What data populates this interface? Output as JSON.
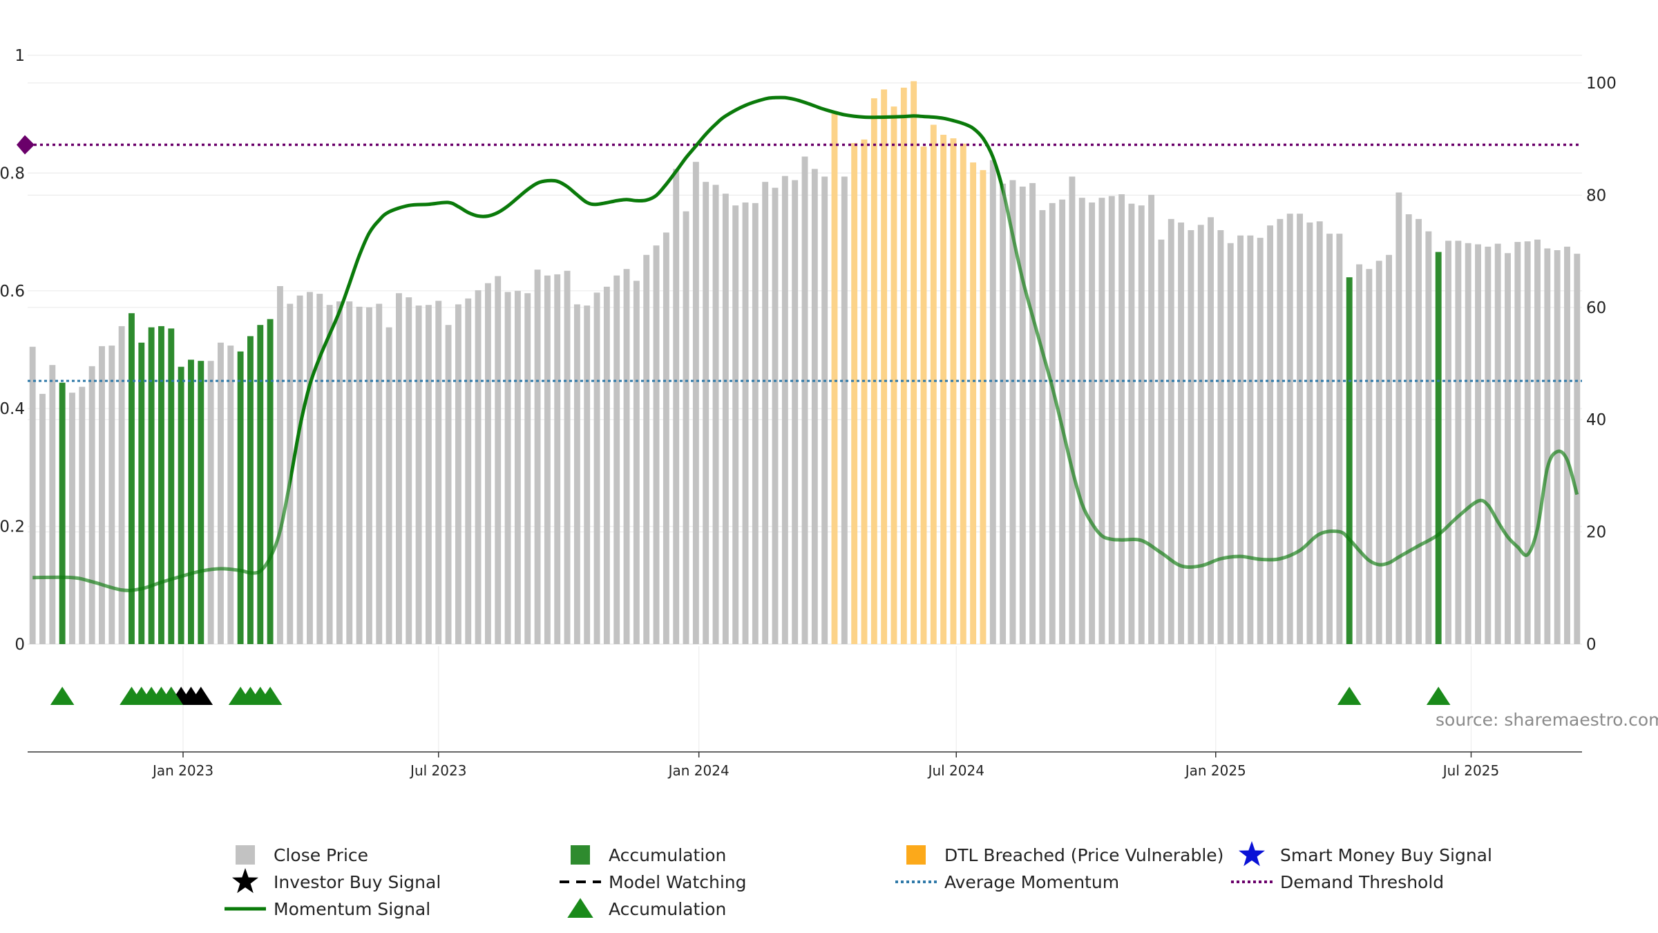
{
  "chart_data": {
    "type": "bar+line",
    "source": "source: sharemaestro.com",
    "left_axis": {
      "ylim": [
        0,
        1
      ],
      "ticks": [
        0,
        0.2,
        0.4,
        0.6,
        0.8,
        1
      ],
      "tick_labels": [
        "0",
        "0.2",
        "0.4",
        "0.6",
        "0.8",
        "1"
      ]
    },
    "right_axis": {
      "ylim": [
        0,
        100
      ],
      "ticks": [
        0,
        20,
        40,
        60,
        80,
        100
      ],
      "tick_labels": [
        "0",
        "20",
        "40",
        "60",
        "80",
        "100"
      ]
    },
    "x_axis": {
      "range_week_index": [
        -0.5,
        156.5
      ],
      "ticks": [
        {
          "label": "Jan 2023",
          "week": 15.2
        },
        {
          "label": "Jul 2023",
          "week": 41.0
        },
        {
          "label": "Jan 2024",
          "week": 67.3
        },
        {
          "label": "Jul 2024",
          "week": 93.3
        },
        {
          "label": "Jan 2025",
          "week": 119.5
        },
        {
          "label": "Jul 2025",
          "week": 145.3
        }
      ]
    },
    "average_momentum": 0.447,
    "demand_threshold": 0.848,
    "series": {
      "close_price": {
        "name": "Close Price",
        "values": [
          0.505,
          0.425,
          0.474,
          0.444,
          0.427,
          0.437,
          0.472,
          0.506,
          0.507,
          0.54,
          0.562,
          0.512,
          0.538,
          0.54,
          0.536,
          0.471,
          0.483,
          0.481,
          0.481,
          0.512,
          0.507,
          0.497,
          0.523,
          0.542,
          0.552,
          0.608,
          0.578,
          0.592,
          0.598,
          0.595,
          0.576,
          0.582,
          0.582,
          0.573,
          0.572,
          0.578,
          0.538,
          0.596,
          0.589,
          0.575,
          0.576,
          0.583,
          0.542,
          0.577,
          0.587,
          0.601,
          0.613,
          0.625,
          0.598,
          0.6,
          0.596,
          0.636,
          0.626,
          0.628,
          0.634,
          0.577,
          0.575,
          0.597,
          0.607,
          0.626,
          0.637,
          0.617,
          0.661,
          0.677,
          0.699,
          0.807,
          0.735,
          0.819,
          0.785,
          0.78,
          0.765,
          0.745,
          0.75,
          0.749,
          0.785,
          0.775,
          0.795,
          0.788,
          0.828,
          0.807,
          0.794,
          0.901,
          0.794,
          0.851,
          0.857,
          0.927,
          0.942,
          0.913,
          0.945,
          0.956,
          0.845,
          0.882,
          0.865,
          0.859,
          0.85,
          0.818,
          0.805,
          0.822,
          0.782,
          0.788,
          0.777,
          0.783,
          0.737,
          0.749,
          0.755,
          0.794,
          0.758,
          0.75,
          0.758,
          0.761,
          0.764,
          0.748,
          0.745,
          0.763,
          0.687,
          0.722,
          0.716,
          0.703,
          0.712,
          0.725,
          0.703,
          0.681,
          0.694,
          0.694,
          0.69,
          0.711,
          0.722,
          0.731,
          0.731,
          0.716,
          0.718,
          0.697,
          0.697,
          0.623,
          0.645,
          0.637,
          0.651,
          0.661,
          0.767,
          0.73,
          0.722,
          0.701,
          0.666,
          0.685,
          0.685,
          0.681,
          0.679,
          0.675,
          0.68,
          0.664,
          0.683,
          0.684,
          0.687,
          0.672,
          0.669,
          0.675,
          0.663
        ],
        "accumulation_weeks": [
          3,
          10,
          11,
          12,
          13,
          14,
          15,
          16,
          17,
          21,
          22,
          23,
          24,
          133,
          142
        ],
        "dtl_breached_weeks": [
          81,
          83,
          84,
          85,
          86,
          87,
          88,
          89,
          90,
          91,
          92,
          93,
          94,
          95,
          96
        ]
      },
      "momentum": {
        "name": "Momentum Signal",
        "weeks": [
          0,
          4,
          6,
          9,
          11,
          13,
          15,
          17,
          19,
          21,
          22,
          23,
          24,
          25,
          26,
          27,
          28,
          29,
          30,
          31,
          32,
          33,
          34,
          35,
          36,
          38,
          40,
          42,
          43,
          44,
          45,
          46,
          47,
          48,
          49,
          50,
          51,
          52,
          53,
          54,
          55,
          56,
          57,
          59,
          60,
          61,
          62,
          63,
          64,
          65,
          66,
          67,
          68,
          69,
          70,
          72,
          74,
          75,
          76,
          77,
          78,
          79,
          80,
          82,
          84,
          86,
          88,
          89,
          90,
          91,
          92,
          93,
          94,
          95,
          96,
          97,
          98,
          99,
          100,
          101,
          102,
          103,
          104,
          105,
          106,
          107,
          108,
          109,
          110,
          112,
          114,
          116,
          118,
          120,
          122,
          124,
          126,
          128,
          130,
          132,
          133,
          134,
          135,
          136,
          137,
          138,
          140,
          142,
          144,
          146,
          147,
          148,
          149,
          150,
          151,
          152,
          153,
          154,
          155,
          156
        ],
        "values": [
          0.113,
          0.113,
          0.106,
          0.092,
          0.094,
          0.105,
          0.115,
          0.124,
          0.128,
          0.125,
          0.121,
          0.124,
          0.147,
          0.192,
          0.276,
          0.369,
          0.44,
          0.487,
          0.526,
          0.565,
          0.612,
          0.66,
          0.698,
          0.72,
          0.734,
          0.745,
          0.747,
          0.75,
          0.743,
          0.733,
          0.727,
          0.727,
          0.733,
          0.744,
          0.758,
          0.772,
          0.783,
          0.787,
          0.786,
          0.777,
          0.763,
          0.75,
          0.747,
          0.753,
          0.755,
          0.753,
          0.754,
          0.762,
          0.781,
          0.803,
          0.826,
          0.846,
          0.866,
          0.883,
          0.897,
          0.915,
          0.926,
          0.928,
          0.928,
          0.925,
          0.92,
          0.914,
          0.908,
          0.899,
          0.895,
          0.895,
          0.896,
          0.897,
          0.896,
          0.895,
          0.893,
          0.889,
          0.884,
          0.876,
          0.859,
          0.827,
          0.772,
          0.694,
          0.619,
          0.557,
          0.497,
          0.436,
          0.368,
          0.297,
          0.238,
          0.205,
          0.184,
          0.178,
          0.177,
          0.176,
          0.155,
          0.133,
          0.133,
          0.145,
          0.149,
          0.144,
          0.145,
          0.159,
          0.187,
          0.191,
          0.178,
          0.159,
          0.142,
          0.135,
          0.138,
          0.148,
          0.167,
          0.186,
          0.217,
          0.243,
          0.236,
          0.208,
          0.182,
          0.165,
          0.152,
          0.196,
          0.299,
          0.327,
          0.313,
          0.254
        ],
        "faded_weeks": [
          [
            0,
            26
          ],
          [
            98,
            156
          ]
        ]
      },
      "accumulation_markers": {
        "name": "Accumulation",
        "weeks": [
          3,
          10,
          11,
          12,
          13,
          14,
          21,
          22,
          23,
          24,
          133,
          142
        ]
      },
      "investor_buy_markers": {
        "name": "Investor Buy Signal",
        "weeks": [
          14,
          15,
          16,
          17
        ]
      }
    },
    "legend": [
      {
        "label": "Close Price",
        "marker": "square",
        "color": "#c2c2c2"
      },
      {
        "label": "Accumulation",
        "marker": "square",
        "color": "#2e8b2e"
      },
      {
        "label": "DTL Breached (Price Vulnerable)",
        "marker": "square",
        "color": "#fca91a"
      },
      {
        "label": "Smart Money Buy Signal",
        "marker": "star",
        "color": "#0a12d6"
      },
      {
        "label": "Investor Buy Signal",
        "marker": "star",
        "color": "#000000"
      },
      {
        "label": "Model Watching",
        "marker": "dash",
        "color": "#000000"
      },
      {
        "label": "Average Momentum",
        "marker": "dotted",
        "color": "#2f79a8"
      },
      {
        "label": "Demand Threshold",
        "marker": "dotted",
        "color": "#6a006a"
      },
      {
        "label": "Momentum Signal",
        "marker": "line",
        "color": "#0a7a0a"
      },
      {
        "label": "Accumulation",
        "marker": "triangle",
        "color": "#1a8a1a"
      }
    ],
    "colors": {
      "close": "#c2c2c2",
      "accumulation": "#2e8b2e",
      "dtl": "#fcd389",
      "momentum": "#0a7a0a",
      "avg_momentum": "#2f79a8",
      "threshold": "#6a006a",
      "marker_green": "#1a8a1a",
      "marker_black": "#000000"
    }
  }
}
